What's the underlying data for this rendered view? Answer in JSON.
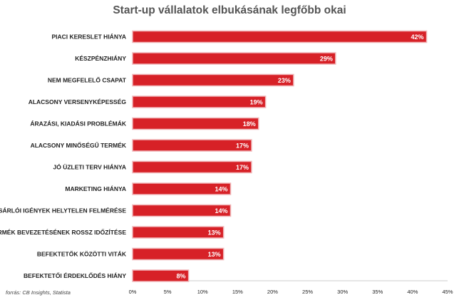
{
  "chart_data": {
    "type": "bar",
    "orientation": "horizontal",
    "title": "Start-up vállalatok elbukásának legfőbb okai",
    "categories": [
      "PIACI KERESLET HIÁNYA",
      "KÉSZPÉNZHIÁNY",
      "NEM MEGFELELŐ CSAPAT",
      "ALACSONY VERSENYKÉPESSÉG",
      "ÁRAZÁSI, KIADÁSI PROBLÉMÁK",
      "ALACSONY MINŐSÉGŰ TERMÉK",
      "JÓ ÜZLETI TERV HIÁNYA",
      "MARKETING HIÁNYA",
      "VÁSÁRLÓI IGÉNYEK HELYTELEN FELMÉRÉSE",
      "TERMÉK BEVEZETÉSÉNEK ROSSZ IDŐZÍTÉSE",
      "BEFEKTETŐK KÖZÖTTI VITÁK",
      "BEFEKTETŐI ÉRDEKLŐDÉS HIÁNY"
    ],
    "values": [
      42,
      29,
      23,
      19,
      18,
      17,
      17,
      14,
      14,
      13,
      13,
      8
    ],
    "value_labels": [
      "42%",
      "29%",
      "23%",
      "19%",
      "18%",
      "17%",
      "17%",
      "14%",
      "14%",
      "13%",
      "13%",
      "8%"
    ],
    "xlim": [
      0,
      45
    ],
    "xticks": [
      "0%",
      "5%",
      "10%",
      "15%",
      "20%",
      "25%",
      "30%",
      "35%",
      "40%",
      "45%"
    ],
    "bar_color": "#d72127",
    "bar_border_color": "#f0b6b8",
    "grid": false
  },
  "source": "forrás: CB Insights, Statista"
}
